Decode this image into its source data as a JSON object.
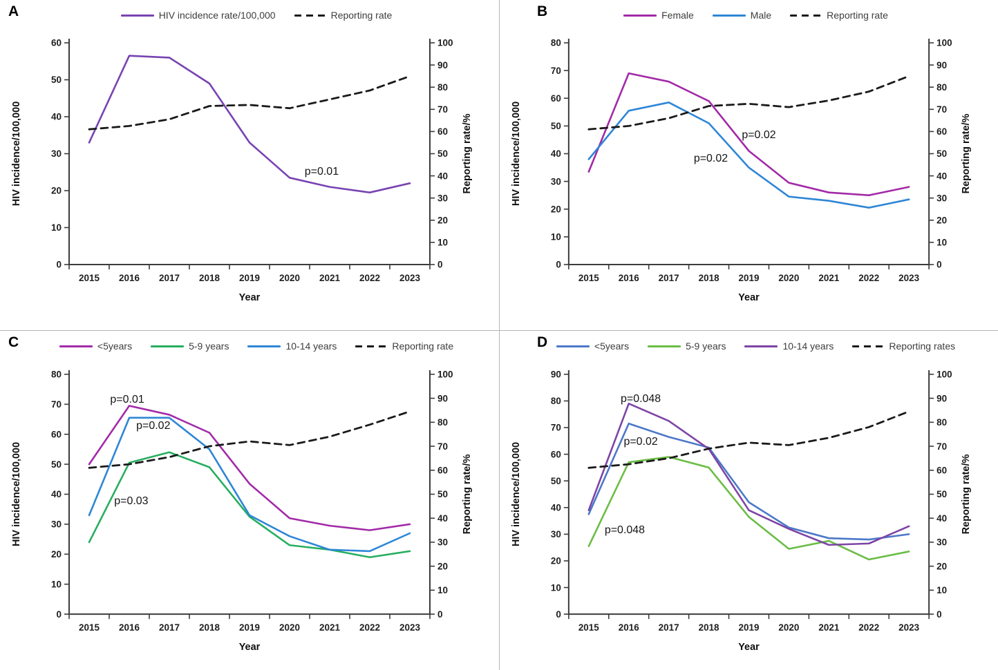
{
  "figure": {
    "background": "#ffffff",
    "divider_color": "#b5b5b5",
    "axis_color": "#3b3b3b",
    "tick_text_color": "#202020",
    "annotation_color": "#141414"
  },
  "chart_data": [
    {
      "type": "line",
      "panel_label": "A",
      "xlabel": "Year",
      "ylabel_left": "HIV incidence/100,000",
      "ylabel_right": "Reporting rate/%",
      "x_categories": [
        "2015",
        "2016",
        "2017",
        "2018",
        "2019",
        "2020",
        "2021",
        "2022",
        "2023"
      ],
      "ylim_left": [
        0,
        60
      ],
      "ylim_right": [
        0,
        100
      ],
      "ytick_step": 10,
      "grid": false,
      "legend_position": "top",
      "series": [
        {
          "name": "HIV incidence rate/100,000",
          "axis": "left",
          "color": "#7843B2",
          "dash": false,
          "values": [
            33,
            56.5,
            56,
            49,
            33,
            23.5,
            21,
            19.5,
            22
          ]
        },
        {
          "name": "Reporting rate",
          "axis": "right",
          "color": "#1a1a1a",
          "dash": true,
          "values": [
            61,
            62.5,
            65.5,
            71.5,
            72,
            70.5,
            74.5,
            78.5,
            85
          ]
        }
      ],
      "annotations": [
        {
          "text": "p=0.01",
          "x": 2020.8,
          "y": 25.3
        }
      ]
    },
    {
      "type": "line",
      "panel_label": "B",
      "xlabel": "Year",
      "ylabel_left": "HIV incidence/100,000",
      "ylabel_right": "Reporting rate/%",
      "x_categories": [
        "2015",
        "2016",
        "2017",
        "2018",
        "2019",
        "2020",
        "2021",
        "2022",
        "2023"
      ],
      "ylim_left": [
        0,
        80
      ],
      "ylim_right": [
        0,
        100
      ],
      "ytick_step": 10,
      "grid": false,
      "legend_position": "top",
      "series": [
        {
          "name": "Female",
          "axis": "left",
          "color": "#A22AA8",
          "dash": false,
          "values": [
            33.5,
            69,
            66,
            59,
            41,
            29.5,
            26,
            25,
            28
          ]
        },
        {
          "name": "Male",
          "axis": "left",
          "color": "#2E86D6",
          "dash": false,
          "values": [
            38,
            55.5,
            58.5,
            51,
            35,
            24.5,
            23,
            20.5,
            23.5
          ]
        },
        {
          "name": "Reporting rate",
          "axis": "right",
          "color": "#1a1a1a",
          "dash": true,
          "values": [
            61,
            62.5,
            66,
            71.5,
            72.5,
            71,
            74,
            78,
            85
          ]
        }
      ],
      "annotations": [
        {
          "text": "p=0.02",
          "x": 2019.25,
          "y": 47
        },
        {
          "text": "p=0.02",
          "x": 2018.05,
          "y": 38.5
        }
      ]
    },
    {
      "type": "line",
      "panel_label": "C",
      "xlabel": "Year",
      "ylabel_left": "HIV incidence/100,000",
      "ylabel_right": "Reporting rate/%",
      "x_categories": [
        "2015",
        "2016",
        "2017",
        "2018",
        "2019",
        "2020",
        "2021",
        "2022",
        "2023"
      ],
      "ylim_left": [
        0,
        80
      ],
      "ylim_right": [
        0,
        100
      ],
      "ytick_step": 10,
      "grid": false,
      "legend_position": "top",
      "series": [
        {
          "name": "<5years",
          "axis": "left",
          "color": "#A22AA8",
          "dash": false,
          "values": [
            50,
            69.5,
            66.5,
            60.5,
            43.5,
            32,
            29.5,
            28,
            30
          ]
        },
        {
          "name": "5-9 years",
          "axis": "left",
          "color": "#27AE60",
          "dash": false,
          "values": [
            24,
            50.5,
            54,
            49,
            32.5,
            23,
            21.5,
            19,
            21
          ]
        },
        {
          "name": "10-14 years",
          "axis": "left",
          "color": "#2E86D6",
          "dash": false,
          "values": [
            33,
            65.5,
            65.5,
            55,
            33,
            26,
            21.5,
            21,
            27
          ]
        },
        {
          "name": "Reporting rate",
          "axis": "right",
          "color": "#1a1a1a",
          "dash": true,
          "values": [
            61,
            62.5,
            65.5,
            70,
            72,
            70.5,
            74,
            79,
            84.5
          ]
        }
      ],
      "annotations": [
        {
          "text": "p=0.01",
          "x": 2015.95,
          "y": 71.8
        },
        {
          "text": "p=0.02",
          "x": 2016.6,
          "y": 63
        },
        {
          "text": "p=0.03",
          "x": 2016.05,
          "y": 38
        }
      ]
    },
    {
      "type": "line",
      "panel_label": "D",
      "xlabel": "Year",
      "ylabel_left": "HIV incidence/100,000",
      "ylabel_right": "Reporting rate/%",
      "x_categories": [
        "2015",
        "2016",
        "2017",
        "2018",
        "2019",
        "2020",
        "2021",
        "2022",
        "2023"
      ],
      "ylim_left": [
        0,
        90
      ],
      "ylim_right": [
        0,
        100
      ],
      "ytick_step": 10,
      "grid": false,
      "legend_position": "top",
      "series": [
        {
          "name": "<5years",
          "axis": "left",
          "color": "#4C78C8",
          "dash": false,
          "values": [
            37.5,
            71.5,
            66.5,
            62.5,
            42,
            32.5,
            28.5,
            28,
            30
          ]
        },
        {
          "name": "5-9 years",
          "axis": "left",
          "color": "#6ABD45",
          "dash": false,
          "values": [
            25.5,
            57,
            59,
            55,
            36.5,
            24.5,
            27.5,
            20.5,
            23.5
          ]
        },
        {
          "name": "10-14 years",
          "axis": "left",
          "color": "#7D44A5",
          "dash": false,
          "values": [
            39,
            79,
            72.5,
            62,
            39,
            32,
            26,
            26.5,
            33
          ]
        },
        {
          "name": "Reporting rates",
          "axis": "right",
          "color": "#1a1a1a",
          "dash": true,
          "values": [
            61,
            62.5,
            65,
            69,
            71.5,
            70.5,
            73.5,
            78,
            84.5
          ]
        }
      ],
      "annotations": [
        {
          "text": "p=0.048",
          "x": 2016.3,
          "y": 81
        },
        {
          "text": "p=0.02",
          "x": 2016.3,
          "y": 65
        },
        {
          "text": "p=0.048",
          "x": 2015.9,
          "y": 31.8
        }
      ]
    }
  ]
}
